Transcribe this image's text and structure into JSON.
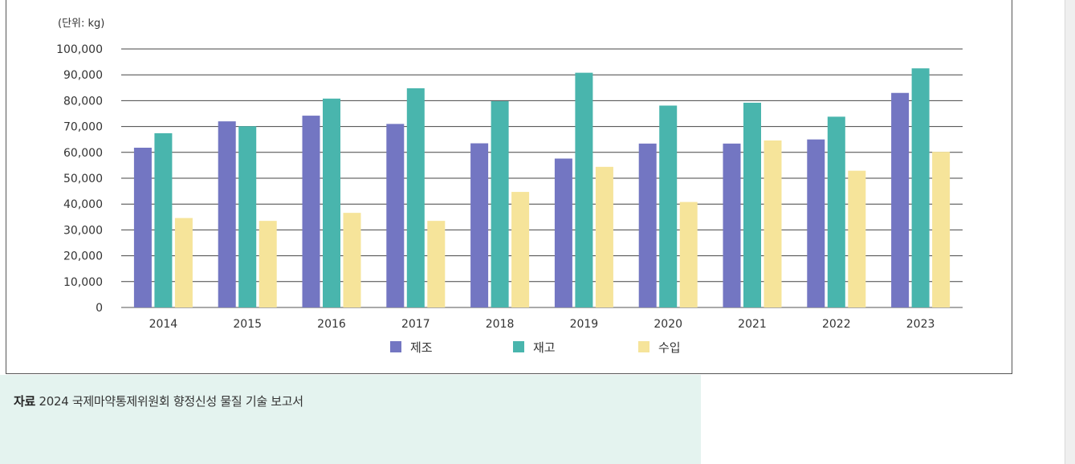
{
  "chart_data": {
    "type": "bar",
    "unit_label": "(단위: kg)",
    "categories": [
      "2014",
      "2015",
      "2016",
      "2017",
      "2018",
      "2019",
      "2020",
      "2021",
      "2022",
      "2023"
    ],
    "series": [
      {
        "name": "제조",
        "color": "#7376c2",
        "values": [
          61800,
          72000,
          74200,
          71000,
          63500,
          57600,
          63400,
          63400,
          65000,
          83000
        ]
      },
      {
        "name": "재고",
        "color": "#49b5ad",
        "values": [
          67400,
          70100,
          80800,
          84800,
          79800,
          90800,
          78100,
          79200,
          73800,
          92500
        ]
      },
      {
        "name": "수입",
        "color": "#f6e49a",
        "values": [
          34600,
          33500,
          36600,
          33500,
          44700,
          54400,
          40800,
          64600,
          52900,
          60200
        ]
      }
    ],
    "yticks": [
      "0",
      "10,000",
      "20,000",
      "30,000",
      "40,000",
      "50,000",
      "60,000",
      "70,000",
      "80,000",
      "90,000",
      "100,000"
    ],
    "ylim": [
      0,
      100000
    ],
    "grid": true,
    "legend": "bottom-center"
  },
  "source": {
    "label": "자료",
    "text": "2024 국제마약통제위원회 향정신성 물질 기술 보고서"
  }
}
